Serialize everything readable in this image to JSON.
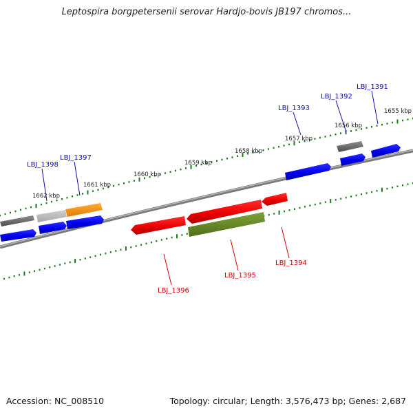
{
  "title": "Leptospira borgpetersenii serovar Hardjo-bovis JB197 chromos...",
  "footer": {
    "accession_text": "Accession: NC_008510",
    "topology_text": "Topology: circular; Length: 3,576,473 bp; Genes: 2,687"
  },
  "colors": {
    "backbone": "#8a8a8a",
    "ticks": "#1a7a1a",
    "gene_label_forward": "#0a0aaa",
    "gene_label_reverse": "#cc0000",
    "tick_label": "#222222"
  },
  "tick_labels": [
    "1662 kbp",
    "1661 kbp",
    "1660 kbp",
    "1659 kbp",
    "1658 kbp",
    "1657 kbp",
    "1656 kbp",
    "1655 kbp"
  ],
  "gene_labels_top": [
    "LBJ_1398",
    "LBJ_1397",
    "LBJ_1393",
    "LBJ_1392",
    "LBJ_1391"
  ],
  "gene_labels_bottom": [
    "LBJ_1396",
    "LBJ_1395",
    "LBJ_1394"
  ]
}
